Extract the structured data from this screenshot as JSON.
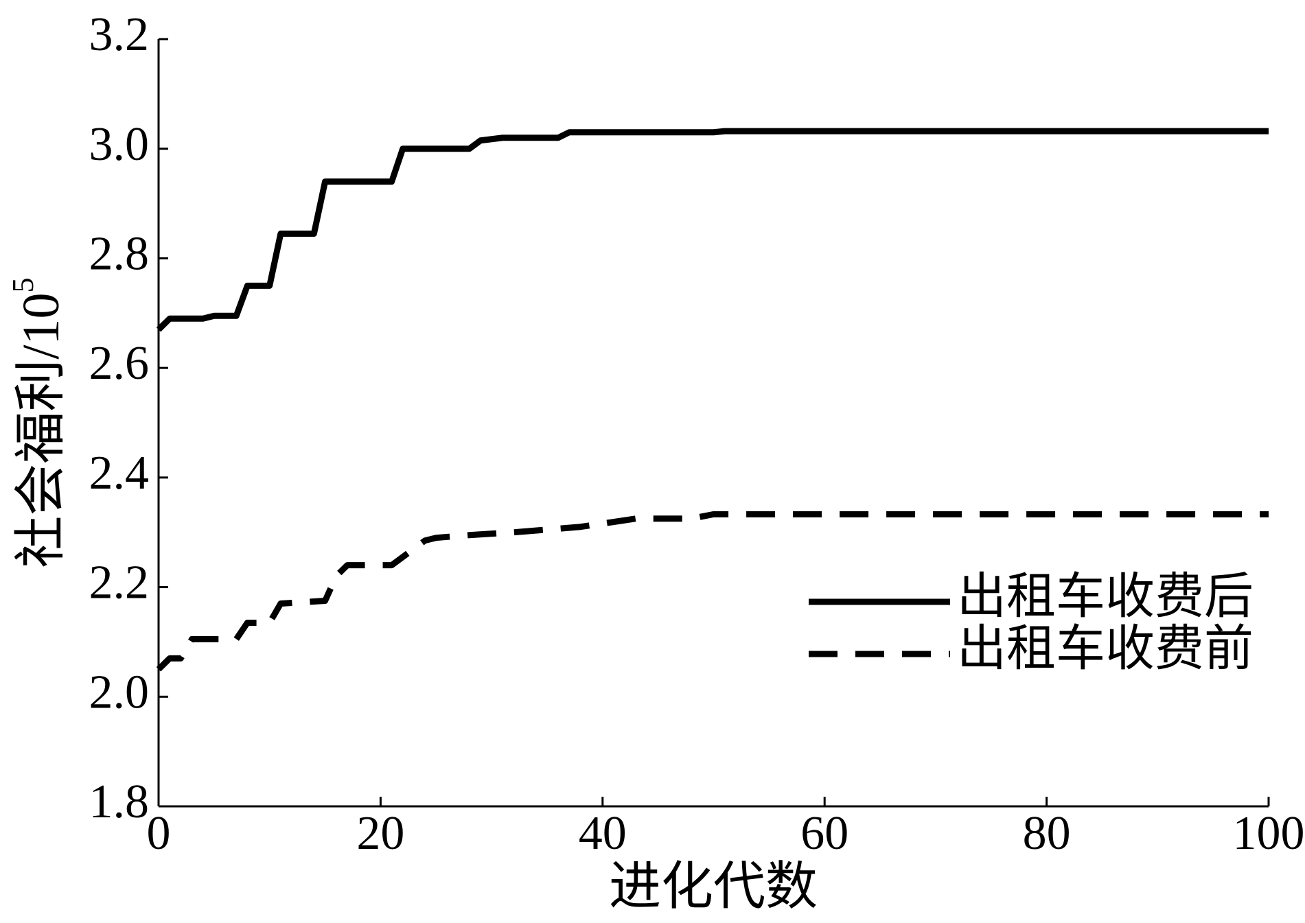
{
  "chart_data": {
    "type": "line",
    "xlabel": "进化代数",
    "ylabel": "社会福利/10",
    "ylabel_exponent": "5",
    "xlim": [
      0,
      100
    ],
    "xticks": [
      0,
      20,
      40,
      60,
      80,
      100
    ],
    "ylim": [
      1.8,
      3.2
    ],
    "yticks": [
      1.8,
      {
        "value": 2,
        "label": "2.0"
      },
      2.2,
      2.4,
      2.6,
      2.8,
      {
        "value": 3,
        "label": "3.0"
      },
      3.2
    ],
    "legend": "center right",
    "series": [
      {
        "name": "出租车收费后",
        "color": "#000000",
        "linestyle": "solid",
        "x": [
          0,
          1,
          4,
          5,
          7,
          8,
          10,
          11,
          14,
          15,
          21,
          22,
          28,
          29,
          31,
          36,
          37,
          50,
          51,
          100
        ],
        "values": [
          2.67,
          2.69,
          2.69,
          2.695,
          2.695,
          2.75,
          2.75,
          2.845,
          2.845,
          2.94,
          2.94,
          3.0,
          3.0,
          3.015,
          3.02,
          3.02,
          3.03,
          3.03,
          3.032,
          3.032
        ]
      },
      {
        "name": "出租车收费前",
        "color": "#000000",
        "linestyle": "dashed",
        "x": [
          0,
          1,
          2,
          3,
          7,
          8,
          10,
          11,
          15,
          16,
          17,
          21,
          24,
          25,
          28,
          32,
          38,
          43,
          48,
          50,
          100
        ],
        "values": [
          2.05,
          2.07,
          2.07,
          2.105,
          2.105,
          2.135,
          2.135,
          2.17,
          2.175,
          2.22,
          2.24,
          2.24,
          2.285,
          2.29,
          2.295,
          2.3,
          2.31,
          2.325,
          2.325,
          2.333,
          2.333
        ]
      }
    ]
  }
}
